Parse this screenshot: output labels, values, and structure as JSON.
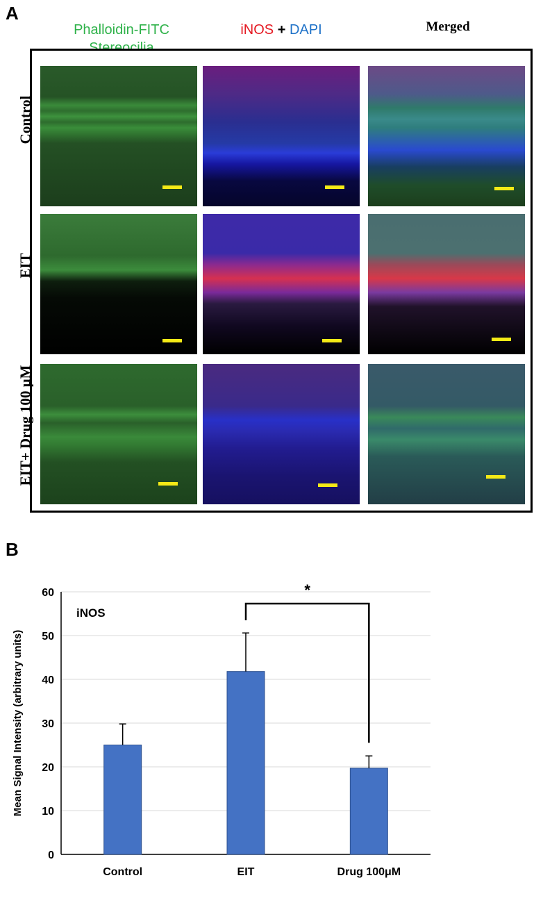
{
  "panel_a": {
    "letter": "A",
    "column_headers": {
      "phalloidin": [
        "Phalloidin-FITC",
        "Stereocilia"
      ],
      "inos_part1": "iNOS",
      "inos_plus": " + ",
      "inos_part2": "DAPI",
      "merged": "Merged"
    },
    "row_labels": [
      "Control",
      "EIT",
      "EIT+ Drug 100 μM"
    ],
    "colors": {
      "green": "#2fb24a",
      "red": "#e51b24",
      "blue": "#1f72c8",
      "scale_bar": "#f4ea16"
    }
  },
  "panel_b": {
    "letter": "B"
  },
  "chart_data": {
    "type": "bar",
    "categories": [
      "Control",
      "EIT",
      "Drug 100μM"
    ],
    "values": [
      25,
      41.8,
      19.7
    ],
    "error": [
      4.8,
      8.8,
      2.8
    ],
    "ylabel": "Mean Signal Intensity (arbitrary units)",
    "xlabel": "",
    "ylim": [
      0,
      60
    ],
    "yticks": [
      0,
      10,
      20,
      30,
      40,
      50,
      60
    ],
    "annotation": "iNOS",
    "significance": {
      "between": [
        "EIT",
        "Drug 100μM"
      ],
      "label": "*"
    },
    "grid": true,
    "bar_color": "#4472c4"
  }
}
